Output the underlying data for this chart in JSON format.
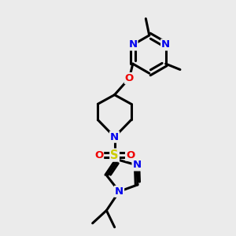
{
  "background_color": "#ebebeb",
  "atom_colors": {
    "N": "#0000ee",
    "O": "#ee0000",
    "S": "#cccc00",
    "C": "#000000"
  },
  "bond_color": "#000000",
  "bond_width": 2.2,
  "figsize": [
    3.0,
    3.0
  ],
  "dpi": 100
}
